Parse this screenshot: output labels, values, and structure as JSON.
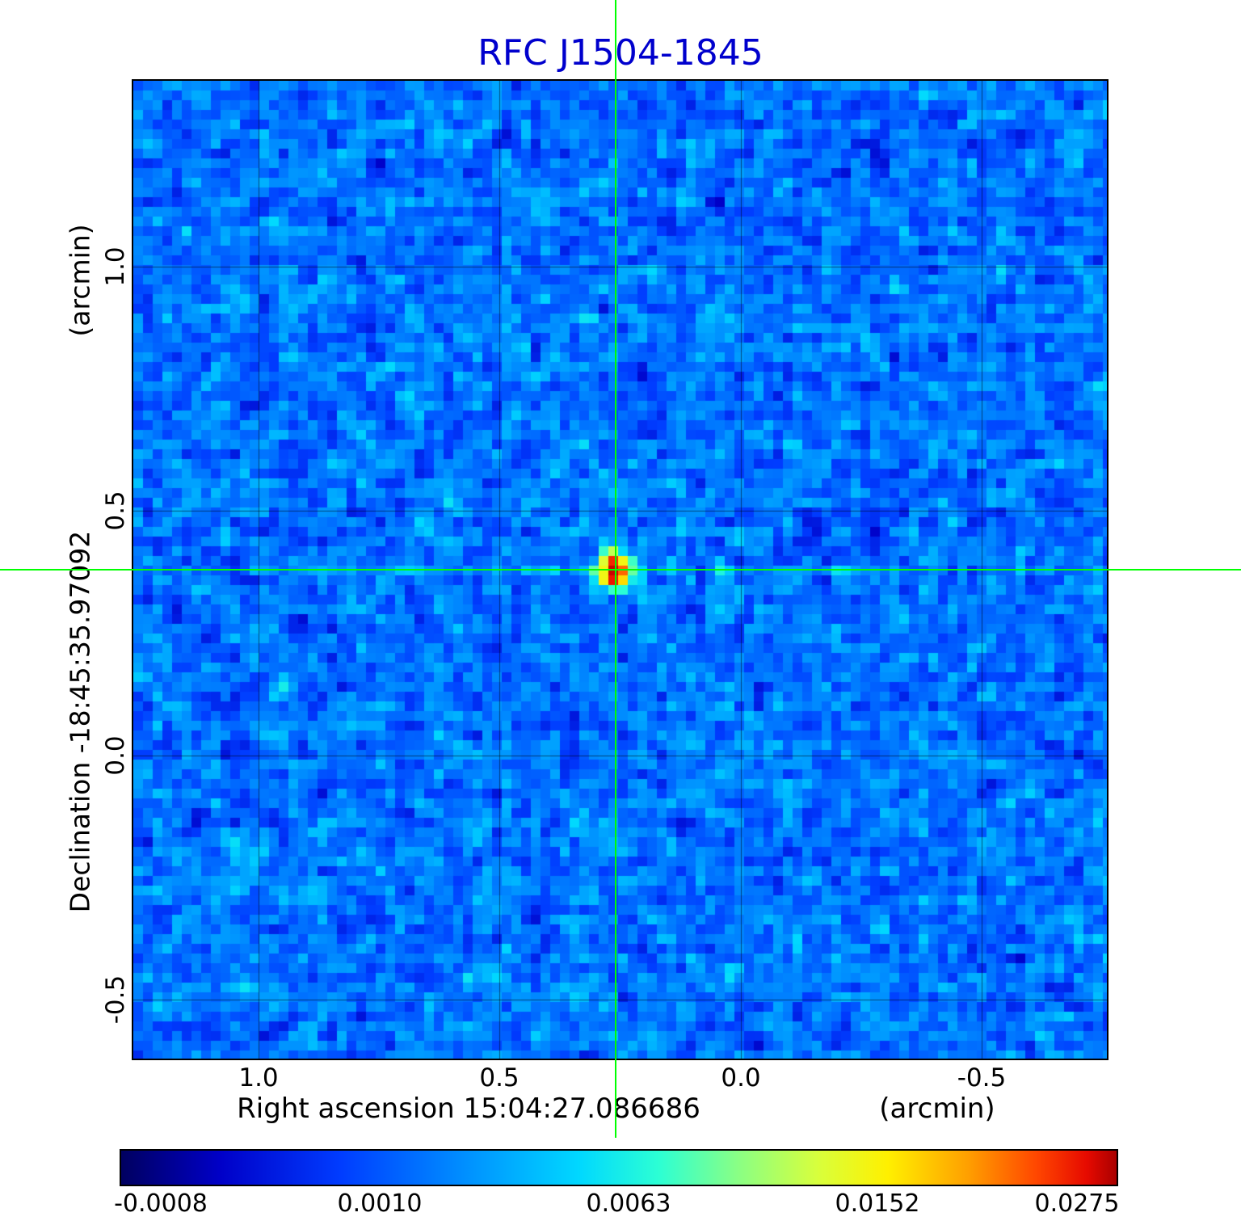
{
  "title": "RFC J1504-1845",
  "axes": {
    "x_label": "Right ascension  15:04:27.086686",
    "x_unit": "(arcmin)",
    "y_label": "Declination  -18:45:35.97092",
    "y_unit": "(arcmin)",
    "x_ticks": [
      "1.0",
      "0.5",
      "0.0",
      "-0.5"
    ],
    "y_ticks": [
      "1.0",
      "0.5",
      "0.0",
      "-0.5"
    ]
  },
  "colorbar": {
    "tick_labels": [
      "-0.0008",
      "0.0010",
      "0.0063",
      "0.0152",
      "0.0275"
    ]
  },
  "chart_data": {
    "type": "heatmap",
    "title": "RFC J1504-1845",
    "xlabel": "Right ascension 15:04:27.086686 (arcmin)",
    "ylabel": "Declination -18:45:35.97092 (arcmin)",
    "x_range_arcmin": [
      1.26,
      -0.76
    ],
    "y_range_arcmin": [
      -0.62,
      1.38
    ],
    "x_tick_values": [
      1.0,
      0.5,
      0.0,
      -0.5
    ],
    "y_tick_values": [
      1.0,
      0.5,
      0.0,
      -0.5
    ],
    "value_scale": {
      "min": -0.0008,
      "max": 0.0275,
      "tick_values": [
        -0.0008,
        0.001,
        0.0063,
        0.0152,
        0.0275
      ],
      "scaling": "nonlinear (power-law stretch)"
    },
    "peak": {
      "x_arcmin": 0.26,
      "y_arcmin": 0.38,
      "value": 0.0275
    },
    "noise_background": {
      "typical_value": 0.0013,
      "rms": 0.0009
    },
    "crosshair": {
      "ra": "15:04:27.086686",
      "dec": "-18:45:35.97092",
      "color": "#00ff00"
    },
    "grid": true,
    "legend_position": "bottom-colorbar",
    "colormap": [
      {
        "pos": 0.0,
        "color": "#000060"
      },
      {
        "pos": 0.1,
        "color": "#0000c8"
      },
      {
        "pos": 0.22,
        "color": "#003cff"
      },
      {
        "pos": 0.34,
        "color": "#008cff"
      },
      {
        "pos": 0.46,
        "color": "#00d8ff"
      },
      {
        "pos": 0.54,
        "color": "#2cffd4"
      },
      {
        "pos": 0.62,
        "color": "#8aff84"
      },
      {
        "pos": 0.7,
        "color": "#d8ff3c"
      },
      {
        "pos": 0.77,
        "color": "#fff000"
      },
      {
        "pos": 0.85,
        "color": "#ffa000"
      },
      {
        "pos": 0.92,
        "color": "#ff4600"
      },
      {
        "pos": 0.97,
        "color": "#e60a00"
      },
      {
        "pos": 1.0,
        "color": "#aa0000"
      }
    ]
  }
}
